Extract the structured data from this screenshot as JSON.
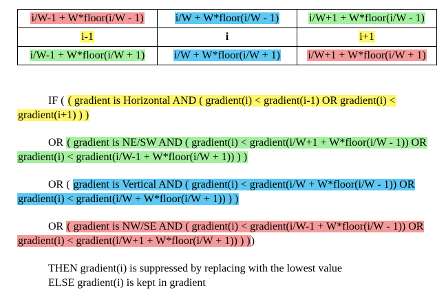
{
  "colors": {
    "red": "#f59a9a",
    "blue": "#5ec8f2",
    "green": "#a5f0a0",
    "yellow": "#fff66a"
  },
  "table": {
    "rows": [
      [
        {
          "text": "i/W-1 + W*floor(i/W - 1)",
          "color": "red"
        },
        {
          "text": "i/W + W*floor(i/W - 1)",
          "color": "blue"
        },
        {
          "text": "i/W+1 + W*floor(i/W - 1)",
          "color": "green"
        }
      ],
      [
        {
          "text": "i-1",
          "color": "yellow"
        },
        {
          "text": "i",
          "color": "none"
        },
        {
          "text": "i+1",
          "color": "yellow"
        }
      ],
      [
        {
          "text": "i/W-1 + W*floor(i/W + 1)",
          "color": "green"
        },
        {
          "text": "i/W + W*floor(i/W + 1)",
          "color": "blue"
        },
        {
          "text": "i/W+1 + W*floor(i/W + 1)",
          "color": "red"
        }
      ]
    ]
  },
  "conditions": [
    {
      "prefix": "IF ( ",
      "highlighted": " ( gradient is Horizontal AND ( gradient(i) < gradient(i-1)  OR gradient(i) < gradient(i+1) ) )",
      "color": "yellow",
      "suffix": ""
    },
    {
      "prefix": "OR ",
      "highlighted": "( gradient is NE/SW AND ( gradient(i) < gradient(i/W+1 + W*floor(i/W - 1))  OR gradient(i) < gradient(i/W-1 + W*floor(i/W + 1)) ) )",
      "color": "green",
      "suffix": ""
    },
    {
      "prefix": "OR ( ",
      "highlighted": "gradient is Vertical AND ( gradient(i) < gradient(i/W + W*floor(i/W - 1)) OR gradient(i) < gradient(i/W + W*floor(i/W + 1)) ) )",
      "color": "blue",
      "suffix": ""
    },
    {
      "prefix": "OR ",
      "highlighted": " ( gradient is NW/SE AND ( gradient(i) < gradient(i/W-1 + W*floor(i/W - 1))  OR gradient(i) < gradient(i/W+1 + W*floor(i/W + 1)) ) )",
      "color": "red",
      "suffix": ")"
    }
  ],
  "then_text": "THEN gradient(i) is suppressed by replacing with the lowest value",
  "else_text": "ELSE gradient(i) is kept in gradient"
}
